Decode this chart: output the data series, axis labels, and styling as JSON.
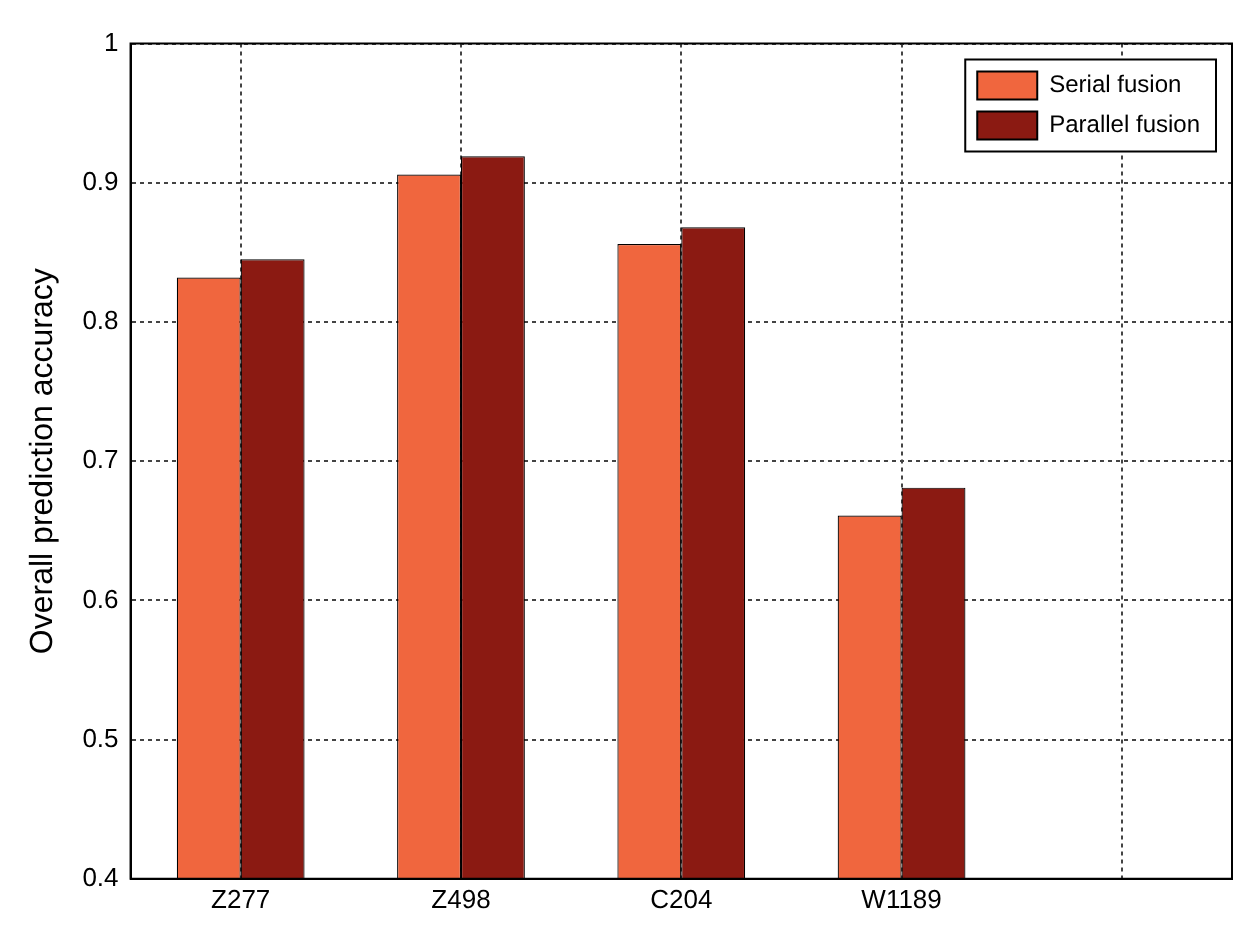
{
  "chart_data": {
    "type": "bar",
    "ylabel": "Overall prediction accuracy",
    "categories": [
      "Z277",
      "Z498",
      "C204",
      "W1189",
      null
    ],
    "series": [
      {
        "name": "Serial fusion",
        "color": "#f0663e",
        "values": [
          0.832,
          0.906,
          0.856,
          0.661,
          null
        ]
      },
      {
        "name": "Parallel fusion",
        "color": "#8b1a12",
        "values": [
          0.845,
          0.919,
          0.868,
          0.681,
          null
        ]
      }
    ],
    "ylim": [
      0.4,
      1
    ],
    "yticks": [
      0.4,
      0.5,
      0.6,
      0.7,
      0.8,
      0.9,
      1
    ],
    "grid": true,
    "legend": "top right"
  }
}
